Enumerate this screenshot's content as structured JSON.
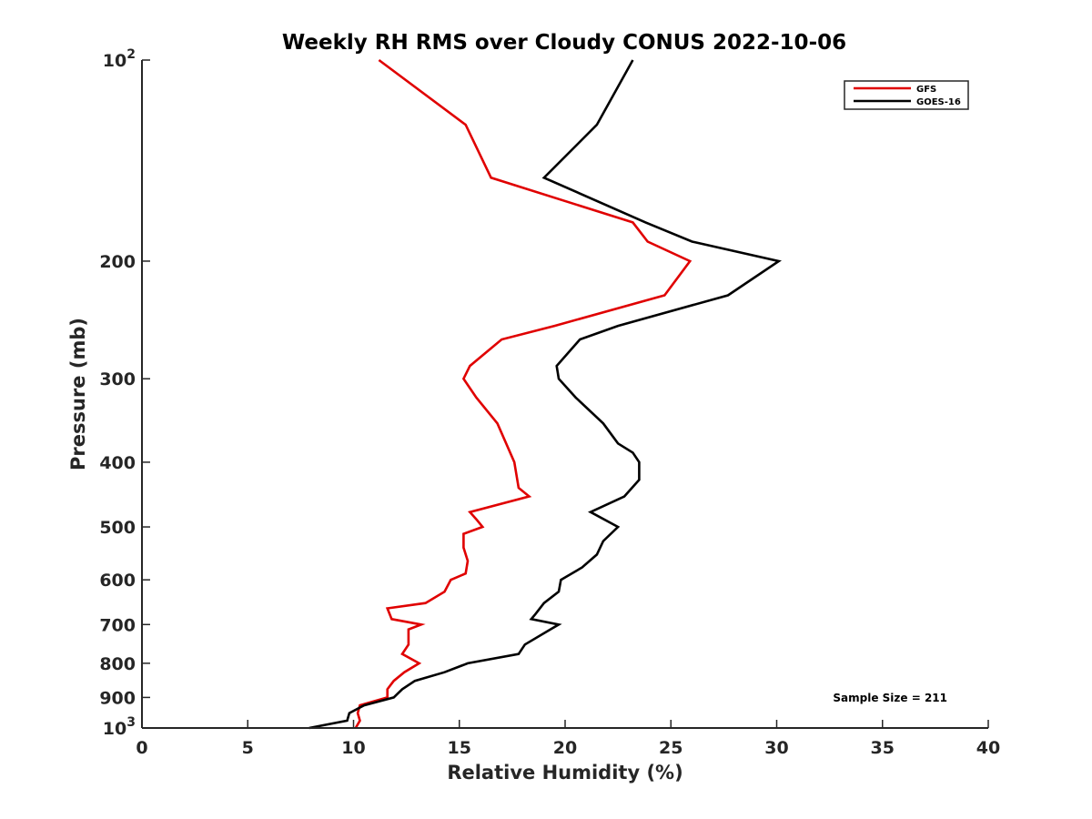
{
  "chart_data": {
    "type": "line",
    "title": "Weekly RH RMS over Cloudy CONUS 2022-10-06",
    "xlabel": "Relative Humidity (%)",
    "ylabel": "Pressure (mb)",
    "xlim": [
      0,
      40
    ],
    "ylim": [
      100,
      1000
    ],
    "yscale": "log",
    "y_reversed": true,
    "grid": false,
    "legend_position": "top-right",
    "x_ticks": [
      "0",
      "5",
      "10",
      "15",
      "20",
      "25",
      "30",
      "35",
      "40"
    ],
    "y_ticks": [
      {
        "value": 100,
        "base": "10",
        "exp": "2"
      },
      {
        "value": 200,
        "label": "200"
      },
      {
        "value": 300,
        "label": "300"
      },
      {
        "value": 400,
        "label": "400"
      },
      {
        "value": 500,
        "label": "500"
      },
      {
        "value": 600,
        "label": "600"
      },
      {
        "value": 700,
        "label": "700"
      },
      {
        "value": 800,
        "label": "800"
      },
      {
        "value": 900,
        "label": "900"
      },
      {
        "value": 1000,
        "base": "10",
        "exp": "3"
      }
    ],
    "annotation": "Sample Size = 211",
    "series": [
      {
        "name": "GFS",
        "color": "#e00000",
        "points": [
          [
            11.2,
            100
          ],
          [
            15.3,
            125
          ],
          [
            16.5,
            150
          ],
          [
            23.2,
            175
          ],
          [
            23.9,
            187
          ],
          [
            25.9,
            200
          ],
          [
            24.7,
            225
          ],
          [
            19.5,
            250
          ],
          [
            17.0,
            262
          ],
          [
            15.5,
            287
          ],
          [
            15.2,
            300
          ],
          [
            15.8,
            320
          ],
          [
            16.8,
            350
          ],
          [
            17.6,
            400
          ],
          [
            17.8,
            437
          ],
          [
            18.3,
            450
          ],
          [
            15.5,
            475
          ],
          [
            15.8,
            487
          ],
          [
            16.1,
            500
          ],
          [
            15.2,
            512
          ],
          [
            15.2,
            537
          ],
          [
            15.4,
            562
          ],
          [
            15.3,
            587
          ],
          [
            14.6,
            600
          ],
          [
            14.3,
            625
          ],
          [
            13.4,
            650
          ],
          [
            11.6,
            662
          ],
          [
            11.8,
            687
          ],
          [
            13.2,
            700
          ],
          [
            12.6,
            712
          ],
          [
            12.6,
            750
          ],
          [
            12.3,
            775
          ],
          [
            13.1,
            800
          ],
          [
            12.4,
            825
          ],
          [
            11.9,
            850
          ],
          [
            11.6,
            875
          ],
          [
            11.6,
            900
          ],
          [
            10.3,
            925
          ],
          [
            10.2,
            950
          ],
          [
            10.3,
            975
          ],
          [
            10.1,
            1000
          ]
        ]
      },
      {
        "name": "GOES-16",
        "color": "#000000",
        "points": [
          [
            23.2,
            100
          ],
          [
            21.5,
            125
          ],
          [
            19.0,
            150
          ],
          [
            23.8,
            175
          ],
          [
            26.0,
            187
          ],
          [
            30.1,
            200
          ],
          [
            27.7,
            225
          ],
          [
            22.5,
            250
          ],
          [
            20.7,
            262
          ],
          [
            19.6,
            287
          ],
          [
            19.7,
            300
          ],
          [
            20.5,
            320
          ],
          [
            21.8,
            350
          ],
          [
            22.5,
            375
          ],
          [
            23.2,
            387
          ],
          [
            23.5,
            400
          ],
          [
            23.5,
            425
          ],
          [
            22.8,
            450
          ],
          [
            21.2,
            475
          ],
          [
            22.5,
            500
          ],
          [
            21.8,
            525
          ],
          [
            21.5,
            550
          ],
          [
            20.8,
            575
          ],
          [
            19.8,
            600
          ],
          [
            19.7,
            625
          ],
          [
            19.0,
            650
          ],
          [
            18.6,
            675
          ],
          [
            18.4,
            687
          ],
          [
            19.7,
            700
          ],
          [
            19.3,
            712
          ],
          [
            18.1,
            750
          ],
          [
            17.8,
            775
          ],
          [
            15.4,
            800
          ],
          [
            14.3,
            825
          ],
          [
            12.9,
            850
          ],
          [
            12.3,
            875
          ],
          [
            11.9,
            900
          ],
          [
            10.5,
            925
          ],
          [
            9.8,
            950
          ],
          [
            9.7,
            975
          ],
          [
            7.9,
            1000
          ]
        ]
      }
    ]
  }
}
